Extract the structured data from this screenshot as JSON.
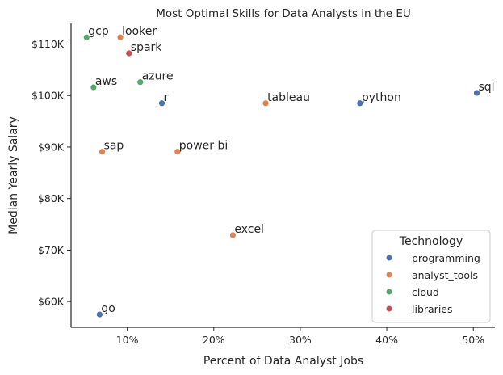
{
  "chart_data": {
    "type": "scatter",
    "title": "Most Optimal Skills for Data Analysts in the EU",
    "xlabel": "Percent of Data Analyst Jobs",
    "ylabel": "Median Yearly Salary",
    "xlim": [
      3.5,
      52.5
    ],
    "ylim": [
      55000,
      114000
    ],
    "xticks": [
      10,
      20,
      30,
      40,
      50
    ],
    "xtick_labels": [
      "10%",
      "20%",
      "30%",
      "40%",
      "50%"
    ],
    "yticks": [
      60000,
      70000,
      80000,
      90000,
      100000,
      110000
    ],
    "ytick_labels": [
      "$60K",
      "$70K",
      "$80K",
      "$90K",
      "$100K",
      "$110K"
    ],
    "grid": false,
    "legend": {
      "title": "Technology",
      "placement": "bottom-right",
      "entries": [
        "programming",
        "analyst_tools",
        "cloud",
        "libraries"
      ]
    },
    "colors": {
      "programming": "#4c72b0",
      "analyst_tools": "#dd8452",
      "cloud": "#55a868",
      "libraries": "#c44e52"
    },
    "points": [
      {
        "label": "sql",
        "x": 50.4,
        "y": 100500,
        "technology": "programming"
      },
      {
        "label": "python",
        "x": 36.9,
        "y": 98500,
        "technology": "programming"
      },
      {
        "label": "r",
        "x": 14.0,
        "y": 98500,
        "technology": "programming"
      },
      {
        "label": "go",
        "x": 6.8,
        "y": 57500,
        "technology": "programming"
      },
      {
        "label": "tableau",
        "x": 26.0,
        "y": 98500,
        "technology": "analyst_tools"
      },
      {
        "label": "looker",
        "x": 9.2,
        "y": 111300,
        "technology": "analyst_tools"
      },
      {
        "label": "power bi",
        "x": 15.8,
        "y": 89100,
        "technology": "analyst_tools"
      },
      {
        "label": "sap",
        "x": 7.1,
        "y": 89100,
        "technology": "analyst_tools"
      },
      {
        "label": "excel",
        "x": 22.2,
        "y": 72900,
        "technology": "analyst_tools"
      },
      {
        "label": "gcp",
        "x": 5.3,
        "y": 111300,
        "technology": "cloud"
      },
      {
        "label": "aws",
        "x": 6.1,
        "y": 101600,
        "technology": "cloud"
      },
      {
        "label": "azure",
        "x": 11.5,
        "y": 102600,
        "technology": "cloud"
      },
      {
        "label": "spark",
        "x": 10.2,
        "y": 108200,
        "technology": "libraries"
      }
    ]
  }
}
